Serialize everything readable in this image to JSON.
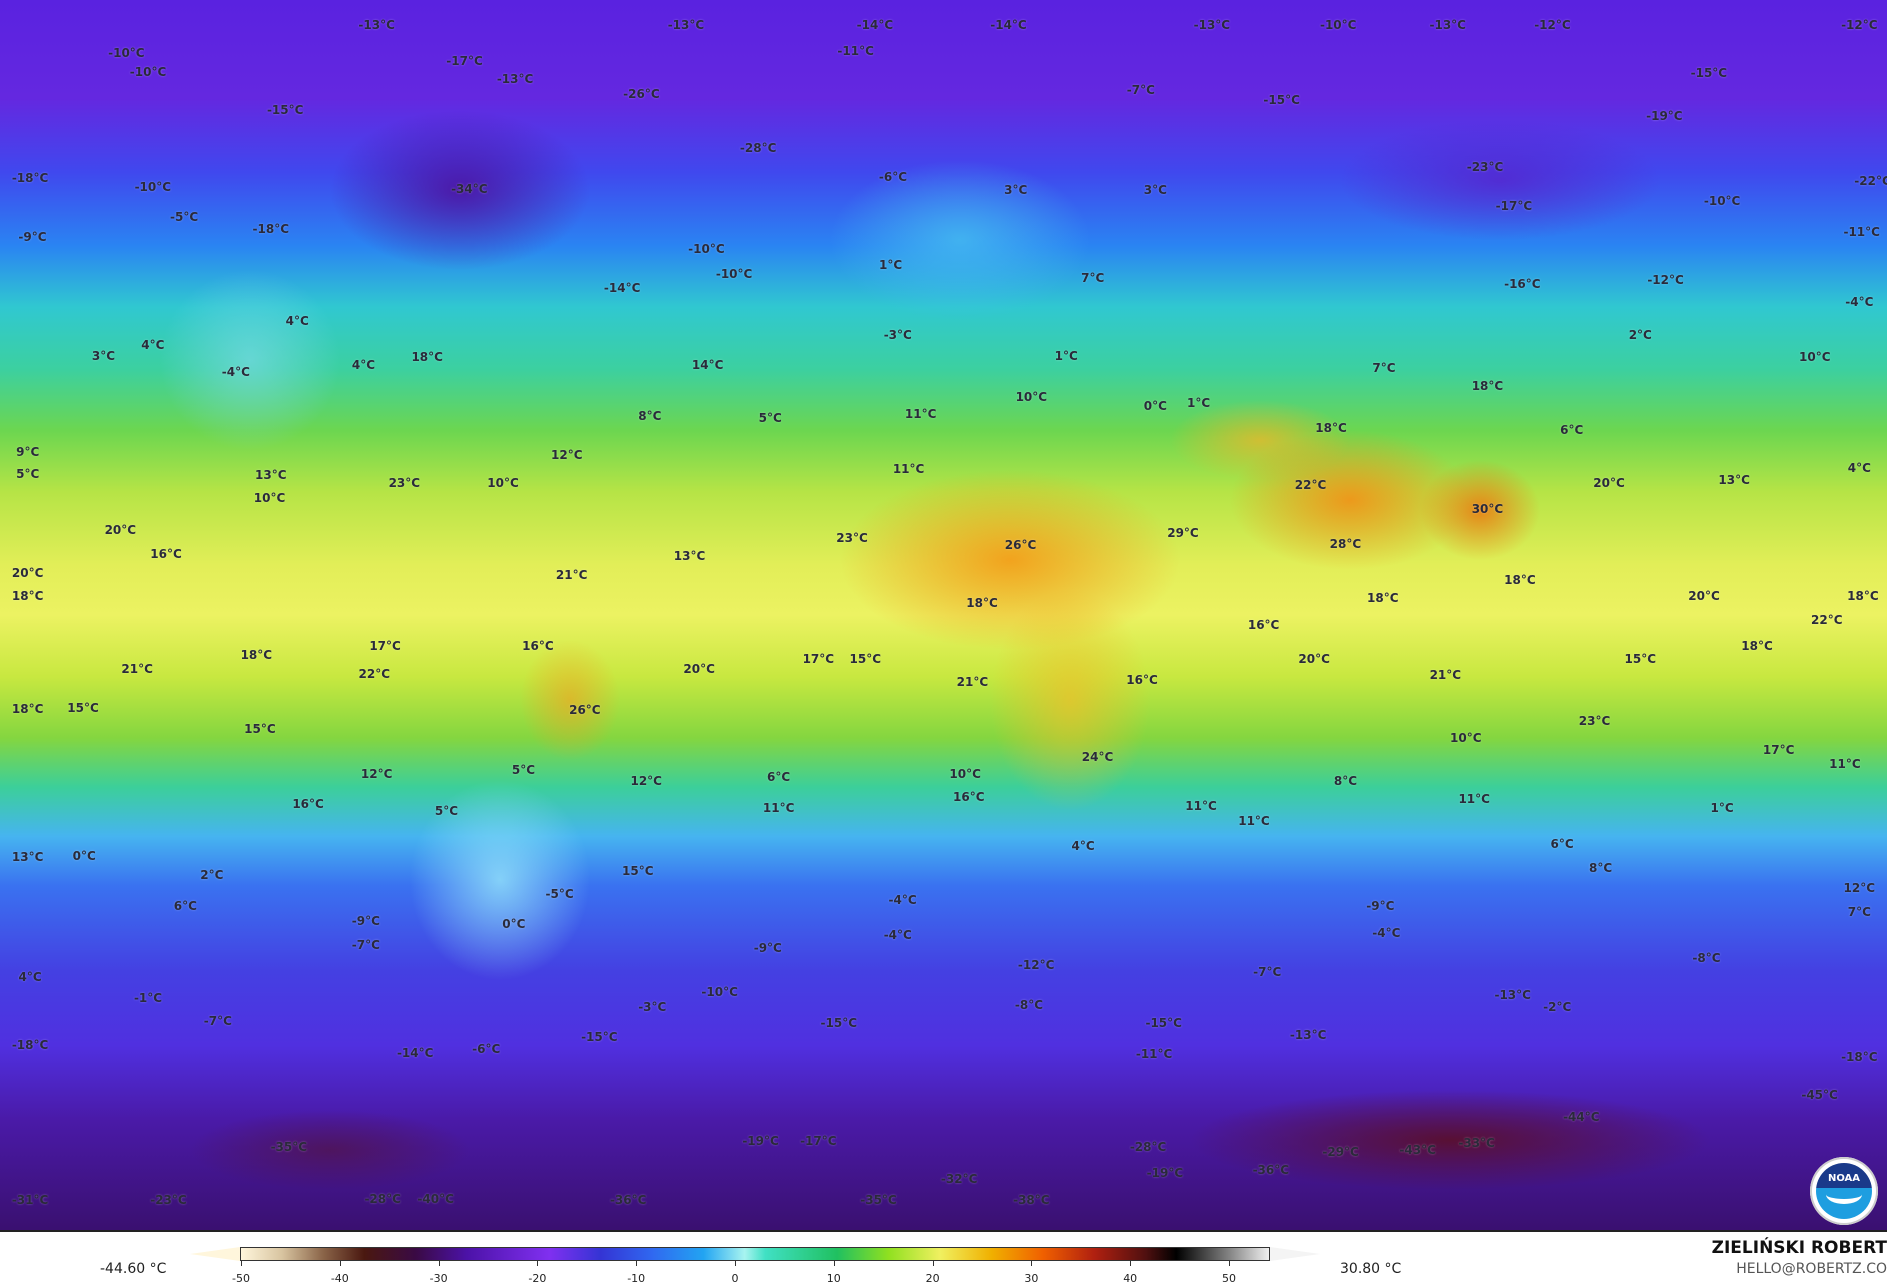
{
  "map": {
    "labels": [
      "-13°C",
      "-13°C",
      "-14°C",
      "-14°C",
      "-13°C",
      "-10°C",
      "-13°C",
      "-12°C",
      "-12°C",
      "-10°C",
      "-10°C",
      "-17°C",
      "-11°C",
      "-13°C",
      "-26°C",
      "-7°C",
      "-15°C",
      "-15°C",
      "-15°C",
      "-19°C",
      "-28°C",
      "-23°C",
      "-22°C",
      "-18°C",
      "-10°C",
      "-34°C",
      "-6°C",
      "3°C",
      "3°C",
      "-17°C",
      "-10°C",
      "-5°C",
      "-18°C",
      "-9°C",
      "-10°C",
      "-10°C",
      "1°C",
      "7°C",
      "-16°C",
      "-12°C",
      "-11°C",
      "-14°C",
      "-4°C",
      "4°C",
      "-3°C",
      "2°C",
      "3°C",
      "4°C",
      "-4°C",
      "4°C",
      "18°C",
      "14°C",
      "10°C",
      "1°C",
      "7°C",
      "18°C",
      "8°C",
      "5°C",
      "10°C",
      "0°C",
      "1°C",
      "11°C",
      "18°C",
      "6°C",
      "9°C",
      "5°C",
      "12°C",
      "11°C",
      "4°C",
      "13°C",
      "10°C",
      "23°C",
      "10°C",
      "22°C",
      "20°C",
      "13°C",
      "23°C",
      "29°C",
      "30°C",
      "28°C",
      "20°C",
      "16°C",
      "13°C",
      "26°C",
      "21°C",
      "20°C",
      "18°C",
      "18°C",
      "18°C",
      "18°C",
      "20°C",
      "18°C",
      "22°C",
      "16°C",
      "17°C",
      "16°C",
      "18°C",
      "17°C",
      "15°C",
      "20°C",
      "21°C",
      "22°C",
      "20°C",
      "21°C",
      "15°C",
      "18°C",
      "21°C",
      "16°C",
      "18°C",
      "15°C",
      "26°C",
      "23°C",
      "15°C",
      "10°C",
      "17°C",
      "11°C",
      "24°C",
      "5°C",
      "12°C",
      "6°C",
      "10°C",
      "12°C",
      "8°C",
      "16°C",
      "16°C",
      "11°C",
      "11°C",
      "11°C",
      "11°C",
      "1°C",
      "5°C",
      "13°C",
      "0°C",
      "4°C",
      "6°C",
      "8°C",
      "2°C",
      "15°C",
      "12°C",
      "6°C",
      "-5°C",
      "-4°C",
      "7°C",
      "-9°C",
      "0°C",
      "-7°C",
      "-9°C",
      "-4°C",
      "-4°C",
      "-9°C",
      "-8°C",
      "4°C",
      "-12°C",
      "-7°C",
      "-1°C",
      "-10°C",
      "-13°C",
      "-3°C",
      "-8°C",
      "-2°C",
      "-7°C",
      "-15°C",
      "-15°C",
      "-18°C",
      "-15°C",
      "-13°C",
      "-14°C",
      "-6°C",
      "-11°C",
      "-18°C",
      "-45°C",
      "-44°C",
      "-35°C",
      "-19°C",
      "-17°C",
      "-28°C",
      "-29°C",
      "-43°C",
      "-33°C",
      "-36°C",
      "-19°C",
      "-32°C",
      "-31°C",
      "-23°C",
      "-28°C",
      "-40°C",
      "-36°C",
      "-35°C",
      "-38°C"
    ],
    "logo": "NOAA"
  },
  "colorbar": {
    "min_label": "-44.60 °C",
    "max_label": "30.80 °C",
    "ticks": [
      "-50",
      "-40",
      "-30",
      "-20",
      "-10",
      "0",
      "10",
      "20",
      "30",
      "40",
      "50"
    ],
    "range": [
      -50,
      50
    ]
  },
  "credit": {
    "author": "ZIELIŃSKI ROBERT",
    "email": "HELLO@ROBERTZ.CO"
  }
}
